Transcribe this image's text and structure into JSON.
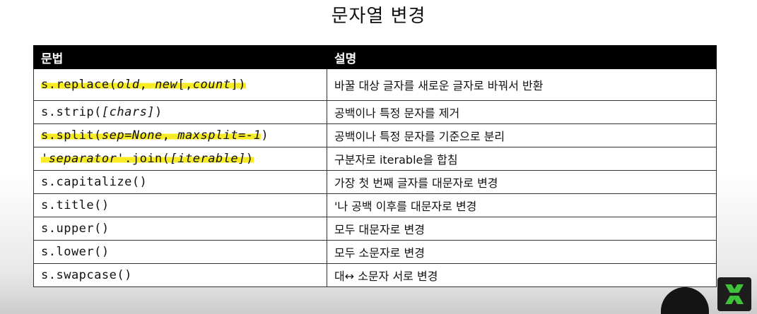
{
  "title": "문자열 변경",
  "table": {
    "headers": [
      "문법",
      "설명"
    ],
    "rows": [
      {
        "code_parts": [
          "s.replace(",
          "old",
          ", ",
          "new",
          "[,",
          "count",
          "])"
        ],
        "description": "바꿀 대상 글자를 새로운 글자로 바꿔서 반환",
        "highlighted": true
      },
      {
        "code_parts": [
          "s.strip(",
          "[chars]",
          ")"
        ],
        "description": "공백이나 특정 문자를 제거",
        "highlighted": false
      },
      {
        "code_parts": [
          "s.split(",
          "sep=None",
          ", ",
          "maxsplit=-1",
          ")"
        ],
        "description": "공백이나 특정 문자를 기준으로 분리",
        "highlighted": true
      },
      {
        "code_parts": [
          "'",
          "separator",
          "'.join(",
          "[iterable]",
          ")"
        ],
        "description": "구분자로 iterable을 합침",
        "highlighted": true
      },
      {
        "code_parts": [
          "s.capitalize()"
        ],
        "description": "가장 첫 번째 글자를 대문자로 변경",
        "highlighted": false
      },
      {
        "code_parts": [
          "s.title()"
        ],
        "description": "'나 공백 이후를 대문자로 변경",
        "highlighted": false
      },
      {
        "code_parts": [
          "s.upper()"
        ],
        "description": "모두 대문자로 변경",
        "highlighted": false
      },
      {
        "code_parts": [
          "s.lower()"
        ],
        "description": "모두 소문자로 변경",
        "highlighted": false
      },
      {
        "code_parts": [
          "s.swapcase()"
        ],
        "description": "대↔ 소문자 서로 변경",
        "highlighted": false
      }
    ]
  },
  "colors": {
    "highlight": "#f7ec24",
    "header_bg": "#000000",
    "logo_accent": "#3ec23a"
  },
  "icons": {
    "logo": "channel-logo-icon"
  }
}
